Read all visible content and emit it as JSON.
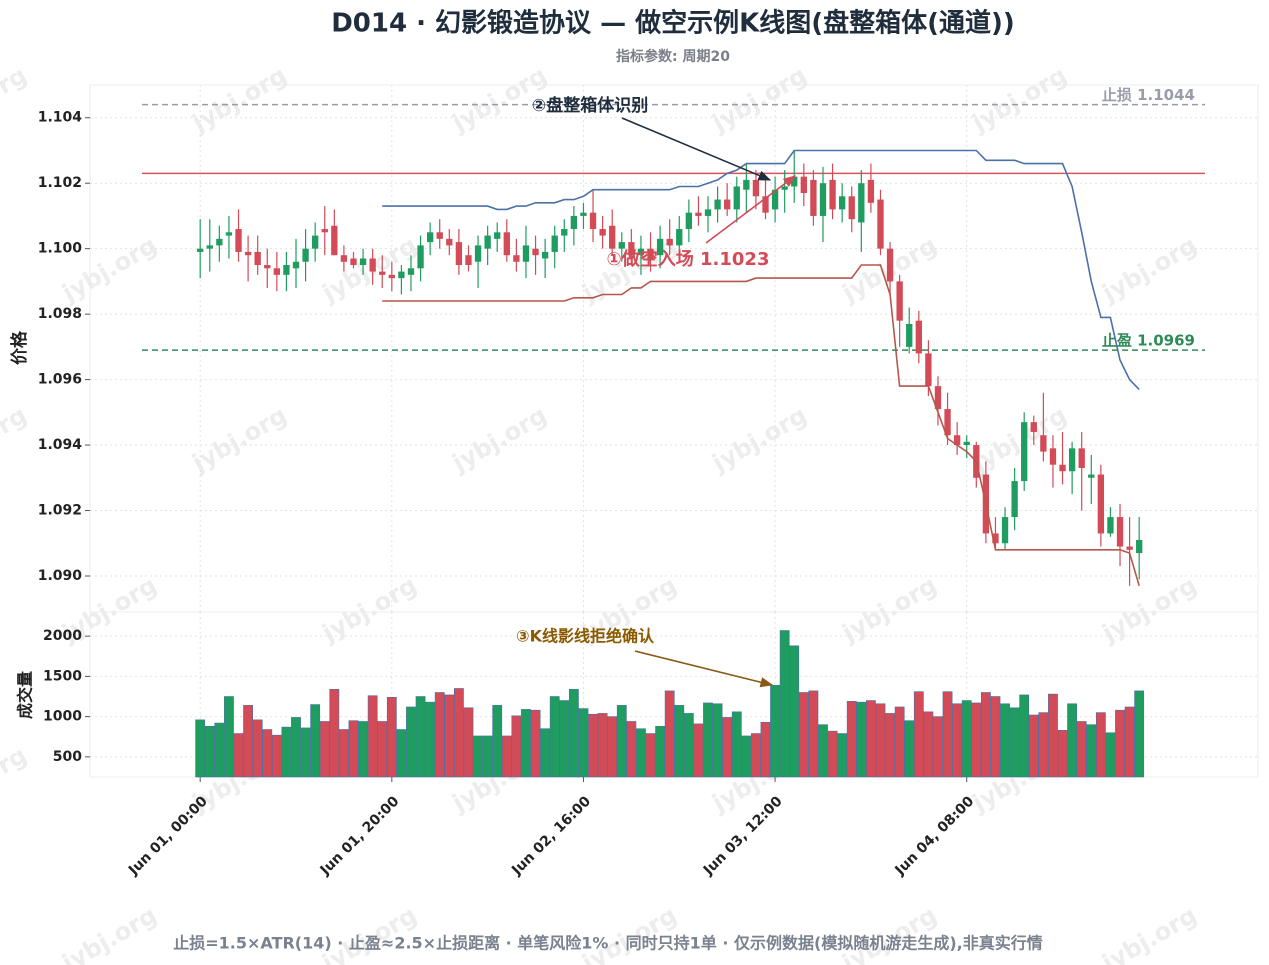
{
  "chart_data": {
    "type": "candlestick",
    "title": "D014 · 幻影锻造协议 — 做空示例K线图(盘整箱体(通道))",
    "subtitle": "指标参数: 周期20",
    "ylabel": "价格",
    "x": [
      "Jun 01, 00:00",
      "Jun 01, 01:00",
      "Jun 01, 02:00",
      "Jun 01, 03:00",
      "Jun 01, 04:00",
      "Jun 01, 05:00",
      "Jun 01, 06:00",
      "Jun 01, 07:00",
      "Jun 01, 08:00",
      "Jun 01, 09:00",
      "Jun 01, 10:00",
      "Jun 01, 11:00",
      "Jun 01, 12:00",
      "Jun 01, 13:00",
      "Jun 01, 14:00",
      "Jun 01, 15:00",
      "Jun 01, 16:00",
      "Jun 01, 17:00",
      "Jun 01, 18:00",
      "Jun 01, 19:00",
      "Jun 01, 20:00",
      "Jun 01, 21:00",
      "Jun 01, 22:00",
      "Jun 01, 23:00",
      "Jun 02, 00:00",
      "Jun 02, 01:00",
      "Jun 02, 02:00",
      "Jun 02, 03:00",
      "Jun 02, 04:00",
      "Jun 02, 05:00",
      "Jun 02, 06:00",
      "Jun 02, 07:00",
      "Jun 02, 08:00",
      "Jun 02, 09:00",
      "Jun 02, 10:00",
      "Jun 02, 11:00",
      "Jun 02, 12:00",
      "Jun 02, 13:00",
      "Jun 02, 14:00",
      "Jun 02, 15:00",
      "Jun 02, 16:00",
      "Jun 02, 17:00",
      "Jun 02, 18:00",
      "Jun 02, 19:00",
      "Jun 02, 20:00",
      "Jun 02, 21:00",
      "Jun 02, 22:00",
      "Jun 02, 23:00",
      "Jun 03, 00:00",
      "Jun 03, 01:00",
      "Jun 03, 02:00",
      "Jun 03, 03:00",
      "Jun 03, 04:00",
      "Jun 03, 05:00",
      "Jun 03, 06:00",
      "Jun 03, 07:00",
      "Jun 03, 08:00",
      "Jun 03, 09:00",
      "Jun 03, 10:00",
      "Jun 03, 11:00",
      "Jun 03, 12:00",
      "Jun 03, 13:00",
      "Jun 03, 14:00",
      "Jun 03, 15:00",
      "Jun 03, 16:00",
      "Jun 03, 17:00",
      "Jun 03, 18:00",
      "Jun 03, 19:00",
      "Jun 03, 20:00",
      "Jun 03, 21:00",
      "Jun 03, 22:00",
      "Jun 03, 23:00",
      "Jun 04, 00:00",
      "Jun 04, 01:00",
      "Jun 04, 02:00",
      "Jun 04, 03:00",
      "Jun 04, 04:00",
      "Jun 04, 05:00",
      "Jun 04, 06:00",
      "Jun 04, 07:00",
      "Jun 04, 08:00",
      "Jun 04, 09:00",
      "Jun 04, 10:00",
      "Jun 04, 11:00",
      "Jun 04, 12:00",
      "Jun 04, 13:00",
      "Jun 04, 14:00",
      "Jun 04, 15:00",
      "Jun 04, 16:00",
      "Jun 04, 17:00",
      "Jun 04, 18:00",
      "Jun 04, 19:00",
      "Jun 04, 20:00",
      "Jun 04, 21:00",
      "Jun 04, 22:00",
      "Jun 04, 23:00",
      "Jun 05, 00:00",
      "Jun 05, 01:00",
      "Jun 05, 02:00"
    ],
    "open": [
      1.0999,
      1.1,
      1.1001,
      1.1004,
      1.1006,
      1.0999,
      1.0999,
      1.0995,
      1.0994,
      1.0992,
      1.0994,
      1.0996,
      1.1,
      1.1006,
      1.1007,
      1.0998,
      1.0997,
      1.0995,
      1.0997,
      1.0993,
      1.0992,
      1.0991,
      1.0992,
      1.0994,
      1.1002,
      1.1005,
      1.1003,
      1.1002,
      1.0998,
      1.0996,
      1.1,
      1.1003,
      1.1005,
      1.0998,
      1.0996,
      1.1,
      1.0997,
      1.0999,
      1.1004,
      1.1006,
      1.101,
      1.1011,
      1.1006,
      1.1007,
      1.1,
      1.1002,
      1.0998,
      1.1,
      1.0998,
      1.1003,
      1.1001,
      1.1006,
      1.1011,
      1.101,
      1.1012,
      1.1015,
      1.1012,
      1.1018,
      1.1021,
      1.1016,
      1.1012,
      1.1018,
      1.1019,
      1.1022,
      1.1021,
      1.101,
      1.1021,
      1.1012,
      1.1016,
      1.1008,
      1.1021,
      1.1015,
      1.1,
      1.099,
      1.097,
      1.0978,
      1.0968,
      1.0958,
      1.0951,
      1.0943,
      1.094,
      1.094,
      1.0931,
      1.0913,
      1.091,
      1.0918,
      1.0929,
      1.0947,
      1.0943,
      1.0939,
      1.0934,
      1.0932,
      1.0939,
      1.093,
      1.0931,
      1.0913,
      1.0918,
      1.0909,
      1.0907
    ],
    "high": [
      1.1009,
      1.1009,
      1.1007,
      1.101,
      1.1012,
      1.1004,
      1.1004,
      1.1,
      1.0999,
      1.0999,
      1.1003,
      1.1006,
      1.1008,
      1.1013,
      1.1012,
      1.1001,
      1.0999,
      1.1,
      1.1,
      1.0998,
      1.0996,
      1.0995,
      1.0998,
      1.1004,
      1.1008,
      1.1009,
      1.1006,
      1.1006,
      1.1001,
      1.1004,
      1.1007,
      1.1008,
      1.1009,
      1.1003,
      1.1007,
      1.1004,
      1.1003,
      1.1007,
      1.1009,
      1.1013,
      1.1014,
      1.1018,
      1.101,
      1.1012,
      1.1005,
      1.1006,
      1.1004,
      1.1005,
      1.1007,
      1.1009,
      1.101,
      1.1015,
      1.1016,
      1.1016,
      1.1019,
      1.102,
      1.1022,
      1.1026,
      1.1024,
      1.1021,
      1.1022,
      1.1024,
      1.103,
      1.1026,
      1.1024,
      1.1025,
      1.1026,
      1.102,
      1.1019,
      1.1024,
      1.1026,
      1.1018,
      1.1002,
      1.0992,
      1.0982,
      1.0981,
      1.0972,
      1.0961,
      1.0956,
      1.0947,
      1.0943,
      1.0941,
      1.0935,
      1.0918,
      1.0921,
      1.0933,
      1.095,
      1.0949,
      1.0956,
      1.0943,
      1.0944,
      1.0941,
      1.0944,
      1.0937,
      1.0934,
      1.0921,
      1.0922,
      1.0918,
      1.0918
    ],
    "low": [
      1.0991,
      1.0993,
      1.0996,
      1.0997,
      1.0996,
      1.099,
      1.0992,
      1.0988,
      1.0987,
      1.0987,
      1.0988,
      1.099,
      1.0996,
      1.0998,
      1.0998,
      1.0993,
      1.0994,
      1.0992,
      1.0989,
      1.0988,
      1.0987,
      1.0986,
      1.0987,
      1.099,
      1.0998,
      1.1,
      1.0998,
      1.0992,
      1.0993,
      1.0988,
      1.0995,
      1.0999,
      1.0996,
      1.0993,
      1.0991,
      1.0992,
      1.0991,
      1.0994,
      1.0999,
      1.1001,
      1.1006,
      1.1002,
      1.1,
      1.0998,
      1.0996,
      1.0995,
      1.0992,
      1.0993,
      1.0994,
      1.0998,
      1.0997,
      1.1002,
      1.1007,
      1.1005,
      1.1008,
      1.101,
      1.1008,
      1.1011,
      1.1012,
      1.1009,
      1.1008,
      1.1011,
      1.1014,
      1.1013,
      1.1007,
      1.1002,
      1.1009,
      1.1008,
      1.1005,
      1.0999,
      1.1011,
      1.0998,
      1.0986,
      1.097,
      1.0968,
      1.0965,
      1.0955,
      1.0946,
      1.094,
      1.0937,
      1.0936,
      1.0927,
      1.091,
      1.0908,
      1.0908,
      1.0914,
      1.0926,
      1.094,
      1.0935,
      1.0927,
      1.0928,
      1.0925,
      1.092,
      1.0922,
      1.0909,
      1.0912,
      1.0903,
      1.0897,
      1.0899
    ],
    "close": [
      1.1,
      1.1001,
      1.1003,
      1.1005,
      1.0999,
      1.0998,
      1.0995,
      1.0994,
      1.0992,
      1.0995,
      1.0996,
      1.1,
      1.1004,
      1.1005,
      1.0998,
      1.0996,
      1.0995,
      1.0997,
      1.0993,
      1.0992,
      1.0991,
      1.0993,
      1.0994,
      1.1001,
      1.1005,
      1.1003,
      1.1001,
      1.0995,
      1.0995,
      1.1001,
      1.1004,
      1.1005,
      1.0998,
      1.0996,
      1.1001,
      1.0998,
      1.0999,
      1.1004,
      1.1006,
      1.101,
      1.1011,
      1.1006,
      1.1004,
      1.1,
      1.1002,
      1.0998,
      1.1,
      1.0997,
      1.1003,
      1.1001,
      1.1006,
      1.1011,
      1.101,
      1.1012,
      1.1015,
      1.1012,
      1.1019,
      1.1021,
      1.1016,
      1.1011,
      1.1018,
      1.1019,
      1.1022,
      1.1017,
      1.101,
      1.102,
      1.1012,
      1.1016,
      1.1009,
      1.102,
      1.1014,
      1.1,
      1.099,
      1.0978,
      1.0977,
      1.0968,
      1.0958,
      1.0951,
      1.0943,
      1.094,
      1.0941,
      1.093,
      1.0913,
      1.091,
      1.0918,
      1.0929,
      1.0947,
      1.0944,
      1.0938,
      1.0934,
      1.0932,
      1.0939,
      1.0933,
      1.0931,
      1.0913,
      1.0918,
      1.0909,
      1.0908,
      1.0911
    ],
    "up_color": "#1f9d60",
    "down_color": "#d24b57",
    "channel_upper": [
      null,
      null,
      null,
      null,
      null,
      null,
      null,
      null,
      null,
      null,
      null,
      null,
      null,
      null,
      null,
      null,
      null,
      null,
      null,
      1.1013,
      1.1013,
      1.1013,
      1.1013,
      1.1013,
      1.1013,
      1.1013,
      1.1013,
      1.1013,
      1.1013,
      1.1013,
      1.1013,
      1.1012,
      1.1012,
      1.1013,
      1.1013,
      1.1014,
      1.1014,
      1.1014,
      1.1015,
      1.1015,
      1.1016,
      1.1018,
      1.1018,
      1.1018,
      1.1018,
      1.1018,
      1.1018,
      1.1018,
      1.1018,
      1.1018,
      1.1019,
      1.1019,
      1.1019,
      1.102,
      1.1021,
      1.1023,
      1.1024,
      1.1026,
      1.1026,
      1.1026,
      1.1026,
      1.1026,
      1.103,
      1.103,
      1.103,
      1.103,
      1.103,
      1.103,
      1.103,
      1.103,
      1.103,
      1.103,
      1.103,
      1.103,
      1.103,
      1.103,
      1.103,
      1.103,
      1.103,
      1.103,
      1.103,
      1.103,
      1.1027,
      1.1027,
      1.1027,
      1.1027,
      1.1026,
      1.1026,
      1.1026,
      1.1026,
      1.1026,
      1.1019,
      1.1005,
      1.099,
      1.0979,
      1.0979,
      1.0966,
      1.096,
      1.0957
    ],
    "channel_lower": [
      null,
      null,
      null,
      null,
      null,
      null,
      null,
      null,
      null,
      null,
      null,
      null,
      null,
      null,
      null,
      null,
      null,
      null,
      null,
      1.0984,
      1.0984,
      1.0984,
      1.0984,
      1.0984,
      1.0984,
      1.0984,
      1.0984,
      1.0984,
      1.0984,
      1.0984,
      1.0984,
      1.0984,
      1.0984,
      1.0984,
      1.0984,
      1.0984,
      1.0984,
      1.0984,
      1.0984,
      1.0985,
      1.0985,
      1.0985,
      1.0986,
      1.0986,
      1.0986,
      1.0988,
      1.0988,
      1.099,
      1.099,
      1.099,
      1.099,
      1.099,
      1.099,
      1.099,
      1.099,
      1.099,
      1.099,
      1.099,
      1.0991,
      1.0991,
      1.0991,
      1.0991,
      1.0991,
      1.0991,
      1.0991,
      1.0991,
      1.0991,
      1.0991,
      1.0991,
      1.0995,
      1.0995,
      1.0995,
      1.0986,
      1.0958,
      1.0958,
      1.0958,
      1.0958,
      1.095,
      1.0942,
      1.094,
      1.0938,
      1.0935,
      1.0922,
      1.0908,
      1.0908,
      1.0908,
      1.0908,
      1.0908,
      1.0908,
      1.0908,
      1.0908,
      1.0908,
      1.0908,
      1.0908,
      1.0908,
      1.0908,
      1.0908,
      1.0907,
      1.0897
    ],
    "upper_color": "#4a72a8",
    "lower_color": "#b5574a",
    "entry": {
      "value": 1.1023,
      "color": "#d9535b"
    },
    "stop_loss": {
      "label": "止损 1.1044",
      "value": 1.1044,
      "color": "#9a9cab"
    },
    "take_profit": {
      "label": "止盈 1.0969",
      "value": 1.0969,
      "color": "#2e8b57"
    },
    "xlim": [
      -11.5,
      110.4
    ],
    "xticks": [
      {
        "value": 0,
        "label": "Jun 01, 00:00"
      },
      {
        "value": 20,
        "label": "Jun 01, 20:00"
      },
      {
        "value": 40,
        "label": "Jun 02, 16:00"
      },
      {
        "value": 60,
        "label": "Jun 03, 12:00"
      },
      {
        "value": 80,
        "label": "Jun 04, 08:00"
      }
    ],
    "ylim": [
      1.0889,
      1.105
    ],
    "yticks": [
      {
        "value": 1.09,
        "label": "1.090"
      },
      {
        "value": 1.092,
        "label": "1.092"
      },
      {
        "value": 1.094,
        "label": "1.094"
      },
      {
        "value": 1.096,
        "label": "1.096"
      },
      {
        "value": 1.098,
        "label": "1.098"
      },
      {
        "value": 1.1,
        "label": "1.100"
      },
      {
        "value": 1.102,
        "label": "1.102"
      },
      {
        "value": 1.104,
        "label": "1.104"
      }
    ],
    "grid": true,
    "volume": {
      "label": "成交量",
      "values": [
        960,
        880,
        920,
        1250,
        790,
        1140,
        960,
        840,
        770,
        870,
        990,
        860,
        1150,
        940,
        1340,
        840,
        950,
        940,
        1260,
        940,
        1240,
        840,
        1120,
        1250,
        1180,
        1300,
        1270,
        1350,
        1110,
        760,
        760,
        1140,
        760,
        1010,
        1090,
        1080,
        850,
        1250,
        1200,
        1340,
        1100,
        1030,
        1040,
        1000,
        1140,
        940,
        850,
        790,
        880,
        1320,
        1140,
        1040,
        910,
        1170,
        1160,
        990,
        1060,
        760,
        790,
        930,
        1390,
        2070,
        1880,
        1300,
        1320,
        900,
        820,
        790,
        1190,
        1180,
        1200,
        1160,
        1040,
        1120,
        950,
        1310,
        1060,
        1000,
        1310,
        1160,
        1200,
        1170,
        1300,
        1250,
        1160,
        1110,
        1270,
        1020,
        1050,
        1280,
        830,
        1160,
        940,
        900,
        1050,
        800,
        1080,
        1120,
        1320
      ],
      "ylim": [
        250,
        2300
      ],
      "yticks": [
        500,
        1000,
        1500,
        2000
      ]
    },
    "annotations": [
      "②盘整箱体识别",
      "①做空入场 1.1023",
      "③K线影线拒绝确认"
    ],
    "footer": "止损=1.5×ATR(14) · 止盈≈2.5×止损距离 · 单笔风险1% · 同时只持1单 · 仅示例数据(模拟随机游走生成),非真实行情",
    "watermark": "jybj.org"
  }
}
